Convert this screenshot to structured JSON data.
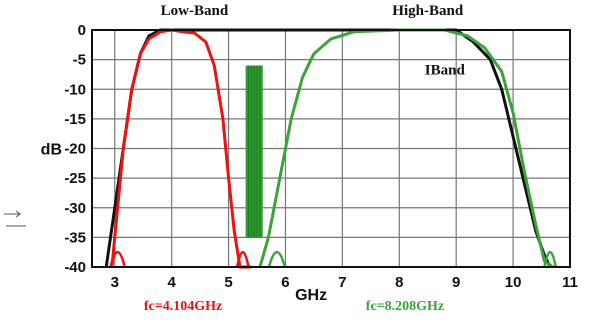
{
  "chart_data": {
    "type": "line",
    "title": "",
    "xlabel": "GHz",
    "ylabel": "dB",
    "xlim": [
      2.6,
      11.0
    ],
    "ylim": [
      -40,
      0
    ],
    "x_ticks": [
      3,
      4,
      5,
      6,
      7,
      8,
      9,
      10,
      11
    ],
    "y_ticks": [
      0,
      -5,
      -10,
      -15,
      -20,
      -25,
      -30,
      -35,
      -40
    ],
    "grid": true,
    "series": [
      {
        "name": "",
        "color": "#111111",
        "x": [
          2.85,
          3.0,
          3.15,
          3.3,
          3.45,
          3.6,
          3.8,
          4.4,
          5.0,
          6.0,
          7.0,
          8.0,
          9.0,
          9.3,
          9.6,
          9.8,
          10.0,
          10.2,
          10.4,
          10.55,
          10.65
        ],
        "y": [
          -40,
          -30,
          -20,
          -10,
          -4,
          -1,
          0,
          0,
          0,
          0,
          0,
          0,
          0,
          -2,
          -5,
          -10,
          -18,
          -26,
          -34,
          -38,
          -40
        ]
      },
      {
        "name": "",
        "color": "#ee1111",
        "x": [
          2.95,
          3.05,
          3.15,
          3.3,
          3.45,
          3.6,
          3.8,
          4.0,
          4.2,
          4.4,
          4.6,
          4.75,
          4.9,
          5.0,
          5.1,
          5.2,
          5.3,
          5.4
        ],
        "y": [
          -40,
          -30,
          -20,
          -10,
          -4,
          -1.5,
          -0.3,
          0,
          -0.3,
          -0.5,
          -2,
          -6,
          -15,
          -25,
          -34,
          -40,
          -40,
          -40
        ]
      },
      {
        "name": "",
        "color": "#3aa33a",
        "x": [
          5.55,
          5.7,
          5.9,
          6.1,
          6.3,
          6.5,
          6.8,
          7.2,
          8.0,
          8.8,
          9.2,
          9.5,
          9.8,
          10.0,
          10.2,
          10.4,
          10.55,
          10.7
        ],
        "y": [
          -40,
          -35,
          -25,
          -15,
          -8,
          -4,
          -1.5,
          -0.3,
          0,
          0,
          -1,
          -3,
          -7,
          -14,
          -24,
          -33,
          -39,
          -40
        ]
      }
    ],
    "shaded_band": {
      "label": "",
      "color": "#2f9a2f",
      "x": [
        5.3,
        5.6
      ],
      "y": [
        -6,
        -35
      ]
    },
    "annotations": [
      {
        "text": "Low-Band",
        "x": 4.4,
        "y": 2.5
      },
      {
        "text": "High-Band",
        "x": 8.5,
        "y": 2.5
      },
      {
        "text": "IBand",
        "x": 8.8,
        "y": -7.5
      }
    ],
    "center_freqs": [
      {
        "text": "fc=4.104GHz",
        "color": "#ee1111"
      },
      {
        "text": "fc=8.208GHz",
        "color": "#3aa33a"
      }
    ]
  }
}
